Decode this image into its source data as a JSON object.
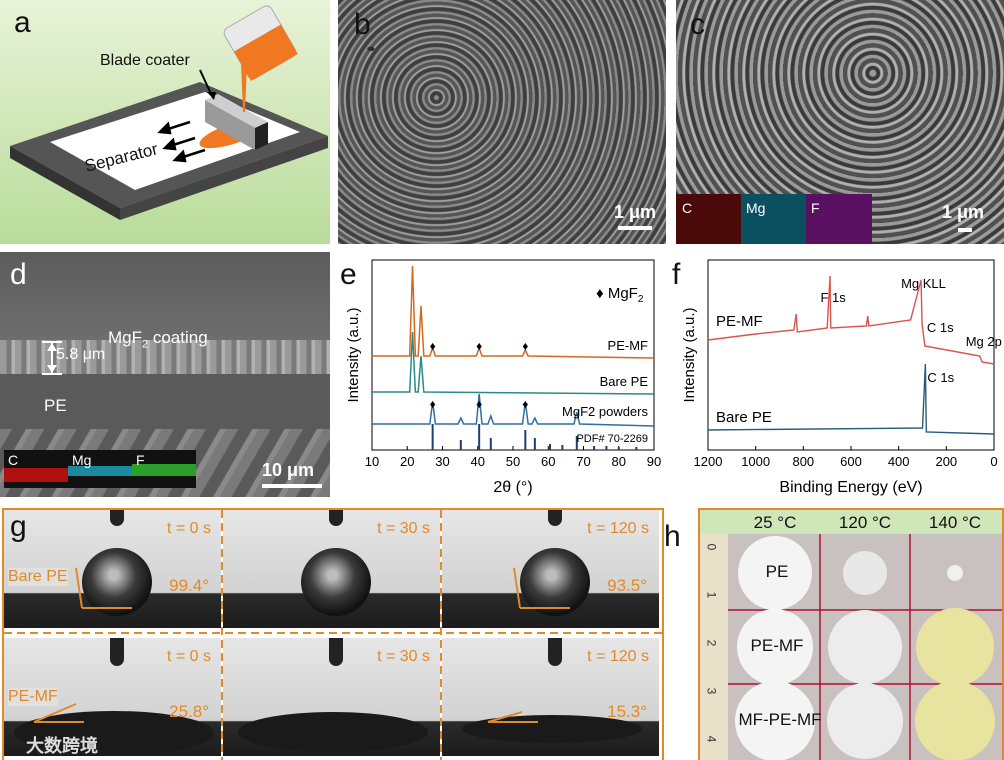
{
  "panels": {
    "a": {
      "label": "a",
      "blade_coater": "Blade coater",
      "separator": "Separator"
    },
    "b": {
      "label": "b",
      "scale": "1 μm"
    },
    "c": {
      "label": "c",
      "scale": "1 μm",
      "eds": [
        "C",
        "Mg",
        "F"
      ]
    },
    "d": {
      "label": "d",
      "coating_prefix": "MgF",
      "coating_sub": "2",
      "coating_suffix": " coating",
      "thickness": "5.8 μm",
      "pe": "PE",
      "scale": "10 μm",
      "eds": [
        "C",
        "Mg",
        "F"
      ]
    },
    "e": {
      "label": "e"
    },
    "f": {
      "label": "f"
    },
    "g": {
      "label": "g",
      "times": [
        "t = 0 s",
        "t = 30 s",
        "t = 120 s"
      ],
      "rows": [
        {
          "name": "Bare PE",
          "angles": [
            "99.4°",
            "",
            "93.5°"
          ]
        },
        {
          "name": "PE-MF",
          "angles": [
            "25.8°",
            "",
            "15.3°"
          ]
        }
      ],
      "watermark": "大数跨境"
    },
    "h": {
      "label": "h",
      "temps": [
        "25 °C",
        "120 °C",
        "140 °C"
      ],
      "rows": [
        "PE",
        "PE-MF",
        "MF-PE-MF"
      ],
      "ruler": [
        "0",
        "1",
        "2",
        "3",
        "4"
      ]
    }
  },
  "chart_data": [
    {
      "type": "line",
      "panel": "e",
      "xlabel": "2θ (°)",
      "ylabel": "Intensity (a.u.)",
      "xlim": [
        10,
        90
      ],
      "xticks": [
        10,
        20,
        30,
        40,
        50,
        60,
        70,
        80,
        90
      ],
      "legend": {
        "marker": "♦",
        "label_prefix": "MgF",
        "label_sub": "2"
      },
      "series": [
        {
          "name": "PE-MF",
          "color": "#d2691e",
          "peaks": [
            21.5,
            23.9,
            27.2,
            40.4,
            53.5
          ]
        },
        {
          "name": "Bare PE",
          "color": "#2a8a8a",
          "peaks": [
            21.5,
            23.9
          ]
        },
        {
          "name": "MgF2 powders",
          "color": "#2f6f9f",
          "peaks": [
            27.2,
            35.2,
            40.4,
            43.7,
            53.5,
            56.2,
            68.1
          ]
        }
      ],
      "series_labels": [
        "PE-MF",
        "Bare PE",
        "MgF2 powders"
      ],
      "reference": {
        "name": "PDF# 70-2269",
        "lines": [
          27.2,
          35.2,
          40.4,
          43.7,
          53.5,
          56.2,
          60.5,
          64.0,
          68.1,
          73.0,
          76.5,
          80.0,
          85.0
        ]
      },
      "mgf2_markers": [
        27.2,
        40.4,
        53.5
      ]
    },
    {
      "type": "line",
      "panel": "f",
      "xlabel": "Binding Energy (eV)",
      "ylabel": "Intensity (a.u.)",
      "xlim": [
        1200,
        0
      ],
      "xticks": [
        1200,
        1000,
        800,
        600,
        400,
        200,
        0
      ],
      "series": [
        {
          "name": "PE-MF",
          "color": "#d9534f"
        },
        {
          "name": "Bare PE",
          "color": "#2a5a7a"
        }
      ],
      "annotations": [
        "F 1s",
        "Mg KLL",
        "C 1s",
        "Mg 2p",
        "C 1s"
      ]
    }
  ]
}
